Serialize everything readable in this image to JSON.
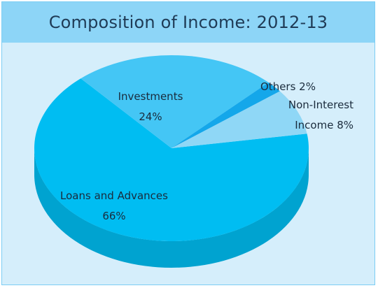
{
  "chart_data": {
    "type": "pie",
    "title": "Composition of Income: 2012-13",
    "slices": [
      {
        "label_lines": [
          "Loans and Advances",
          "66%"
        ],
        "value": 66,
        "color": "#00bdf2"
      },
      {
        "label_lines": [
          "Investments",
          "24%"
        ],
        "value": 24,
        "color": "#44c6f5"
      },
      {
        "label_lines": [
          "Others 2%"
        ],
        "value": 2,
        "color": "#14a7ea"
      },
      {
        "label_lines": [
          "Non-Interest",
          "Income 8%"
        ],
        "value": 8,
        "color": "#8fd7f6"
      }
    ]
  }
}
